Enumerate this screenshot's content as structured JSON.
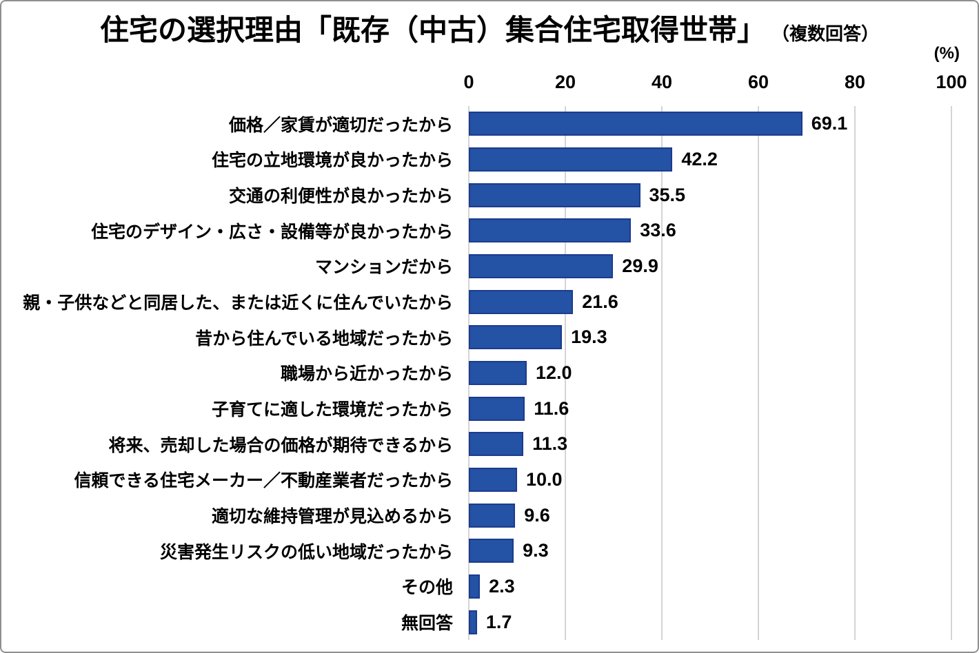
{
  "chart_data": {
    "type": "bar",
    "orientation": "horizontal",
    "title_main": "住宅の選択理由「既存（中古）集合住宅取得世帯」",
    "title_suffix": "（複数回答）",
    "unit_label": "(%)",
    "categories": [
      "価格／家賃が適切だったから",
      "住宅の立地環境が良かったから",
      "交通の利便性が良かったから",
      "住宅のデザイン・広さ・設備等が良かったから",
      "マンションだから",
      "親・子供などと同居した、または近くに住んでいたから",
      "昔から住んでいる地域だったから",
      "職場から近かったから",
      "子育てに適した環境だったから",
      "将来、売却した場合の価格が期待できるから",
      "信頼できる住宅メーカー／不動産業者だったから",
      "適切な維持管理が見込めるから",
      "災害発生リスクの低い地域だったから",
      "その他",
      "無回答"
    ],
    "values": [
      69.1,
      42.2,
      35.5,
      33.6,
      29.9,
      21.6,
      19.3,
      12.0,
      11.6,
      11.3,
      10.0,
      9.6,
      9.3,
      2.3,
      1.7
    ],
    "value_labels": [
      "69.1",
      "42.2",
      "35.5",
      "33.6",
      "29.9",
      "21.6",
      "19.3",
      "12.0",
      "11.6",
      "11.3",
      "10.0",
      "9.6",
      "9.3",
      "2.3",
      "1.7"
    ],
    "x_ticks": [
      0,
      20,
      40,
      60,
      80,
      100
    ],
    "xlim": [
      0,
      100
    ],
    "xlabel": "(%)",
    "ylabel": "",
    "grid": true,
    "legend_position": "none",
    "bar_color": "#2452A4",
    "bar_border_color": "#1C3B8E",
    "gridline_color": "#D4D4D4",
    "background_color": "#FFFFFF"
  }
}
